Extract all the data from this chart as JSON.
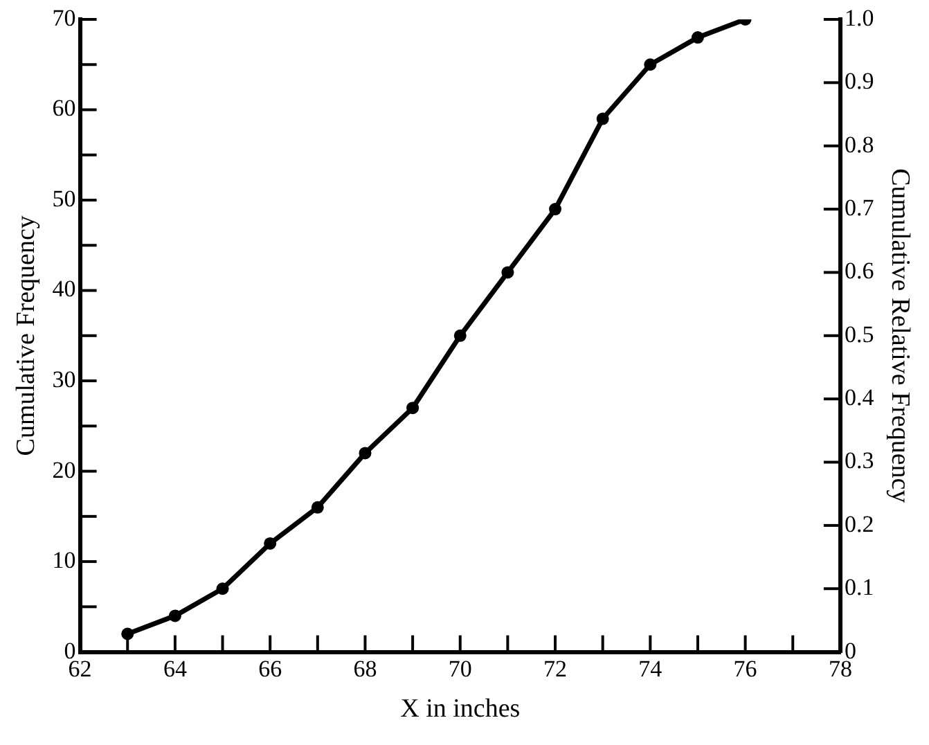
{
  "chart_data": {
    "type": "line",
    "xlabel": "X in inches",
    "ylabel": "Cumulative Frequency",
    "y2label": "Cumulative Relative Frequency",
    "x": [
      63,
      64,
      65,
      66,
      67,
      68,
      69,
      70,
      71,
      72,
      73,
      74,
      75,
      76
    ],
    "series": [
      {
        "color": "#000000",
        "values": [
          2,
          4,
          7,
          12,
          16,
          22,
          27,
          35,
          42,
          49,
          59,
          65,
          68,
          70
        ]
      }
    ],
    "xlim": [
      62,
      78
    ],
    "xticks": [
      62,
      {
        "value": 63,
        "label": null
      },
      64,
      {
        "value": 65,
        "label": null
      },
      66,
      {
        "value": 67,
        "label": null
      },
      68,
      {
        "value": 69,
        "label": null
      },
      70,
      {
        "value": 71,
        "label": null
      },
      72,
      {
        "value": 73,
        "label": null
      },
      74,
      {
        "value": 75,
        "label": null
      },
      76,
      {
        "value": 77,
        "label": null
      },
      78
    ],
    "ylim": [
      0,
      70
    ],
    "yticks": [
      0,
      {
        "value": 5,
        "label": null
      },
      10,
      {
        "value": 15,
        "label": null
      },
      20,
      {
        "value": 25,
        "label": null
      },
      30,
      {
        "value": 35,
        "label": null
      },
      40,
      {
        "value": 45,
        "label": null
      },
      50,
      {
        "value": 55,
        "label": null
      },
      60,
      {
        "value": 65,
        "label": null
      },
      70
    ],
    "y2lim": [
      0,
      1.0
    ],
    "y2ticks": [
      0,
      0.1,
      0.2,
      0.3,
      0.4,
      0.5,
      0.6,
      0.7,
      0.8,
      0.9,
      {
        "value": 1.0,
        "label": "1.0"
      }
    ],
    "grid": false,
    "legend": false,
    "marker": "circle",
    "line_style": "solid"
  }
}
